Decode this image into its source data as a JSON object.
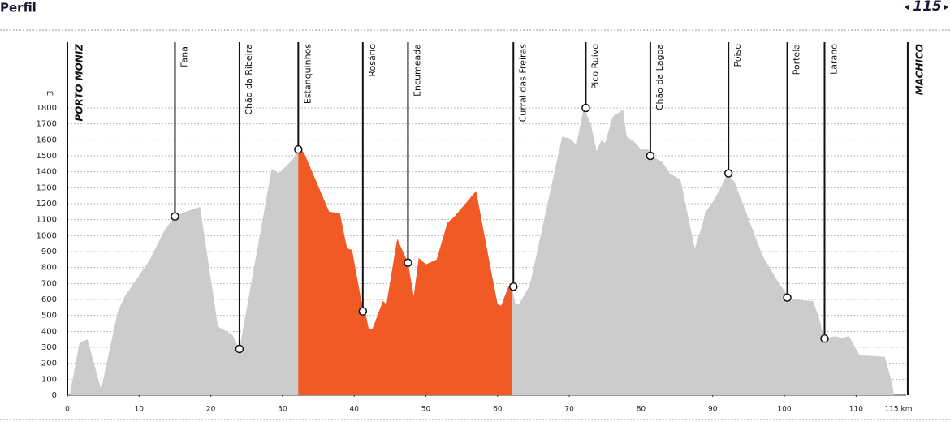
{
  "header": {
    "title": "Perfil",
    "page": "115"
  },
  "chart_data": {
    "type": "area",
    "yunit": "m",
    "color": "#cccccc",
    "highlight": [
      32.2,
      62
    ],
    "highlight_color": "#f15a24",
    "xlim": [
      0,
      115
    ],
    "ylim": [
      0,
      1800
    ],
    "xticks": [
      0,
      10,
      20,
      30,
      40,
      50,
      60,
      70,
      80,
      90,
      100,
      110,
      {
        "value": 115,
        "label": "115 km"
      }
    ],
    "yticks": [
      0,
      100,
      200,
      300,
      400,
      500,
      600,
      700,
      800,
      900,
      1000,
      1100,
      1200,
      1300,
      1400,
      1500,
      1600,
      1700,
      1800
    ],
    "grid": true,
    "x": [
      0.3,
      1.7,
      2.8,
      4.7,
      7,
      8,
      10,
      11.5,
      13.5,
      15,
      16.5,
      18.5,
      21,
      23,
      24,
      28.5,
      29.5,
      31.5,
      32.2,
      33,
      36.5,
      38,
      39,
      39.7,
      41,
      41.5,
      42,
      42.5,
      44,
      44.5,
      46,
      47.5,
      48.3,
      49,
      50,
      51.5,
      53,
      54,
      57,
      59,
      60,
      60.5,
      61.5,
      62,
      62.5,
      63,
      64.5,
      69,
      70,
      71,
      72,
      73,
      73.8,
      74.5,
      75,
      76,
      76.5,
      77.5,
      78,
      79,
      80,
      81,
      81.5,
      83,
      84,
      85.5,
      87.5,
      88.5,
      89,
      90,
      91,
      92,
      93,
      97,
      99,
      100.5,
      101,
      104,
      105,
      105.5,
      107,
      108,
      109,
      110.5,
      114,
      115,
      115.3
    ],
    "values": [
      0,
      330,
      350,
      35,
      520,
      620,
      750,
      850,
      1030,
      1120,
      1150,
      1180,
      430,
      380,
      290,
      1420,
      1390,
      1480,
      1550,
      1520,
      1150,
      1140,
      920,
      910,
      590,
      530,
      420,
      410,
      590,
      570,
      980,
      830,
      620,
      860,
      820,
      850,
      1080,
      1120,
      1280,
      800,
      570,
      560,
      680,
      680,
      570,
      570,
      690,
      1620,
      1610,
      1570,
      1800,
      1700,
      1530,
      1600,
      1580,
      1740,
      1760,
      1790,
      1620,
      1590,
      1540,
      1540,
      1500,
      1460,
      1390,
      1350,
      920,
      1060,
      1150,
      1210,
      1290,
      1380,
      1340,
      870,
      720,
      620,
      600,
      590,
      460,
      350,
      370,
      360,
      370,
      250,
      240,
      80,
      0
    ],
    "waypoints": [
      {
        "name": "Fanal",
        "x": 15,
        "y": 1120
      },
      {
        "name": "Chão da Ribeira",
        "x": 24,
        "y": 290
      },
      {
        "name": "Estanquinhos",
        "x": 32.2,
        "y": 1540
      },
      {
        "name": "Rosário",
        "x": 41.2,
        "y": 525
      },
      {
        "name": "Encumeada",
        "x": 47.5,
        "y": 830
      },
      {
        "name": "Curral das Freiras",
        "x": 62.2,
        "y": 680
      },
      {
        "name": "Pico Ruivo",
        "x": 72.3,
        "y": 1800
      },
      {
        "name": "Chão da Lagoa",
        "x": 81.3,
        "y": 1500
      },
      {
        "name": "Poiso",
        "x": 92.2,
        "y": 1390
      },
      {
        "name": "Portela",
        "x": 100.4,
        "y": 612
      },
      {
        "name": "Larano",
        "x": 105.6,
        "y": 355
      }
    ],
    "endpoints": [
      {
        "name": "PORTO MONIZ",
        "x": 0
      },
      {
        "name": "MACHICO",
        "x": 117.2
      }
    ]
  }
}
